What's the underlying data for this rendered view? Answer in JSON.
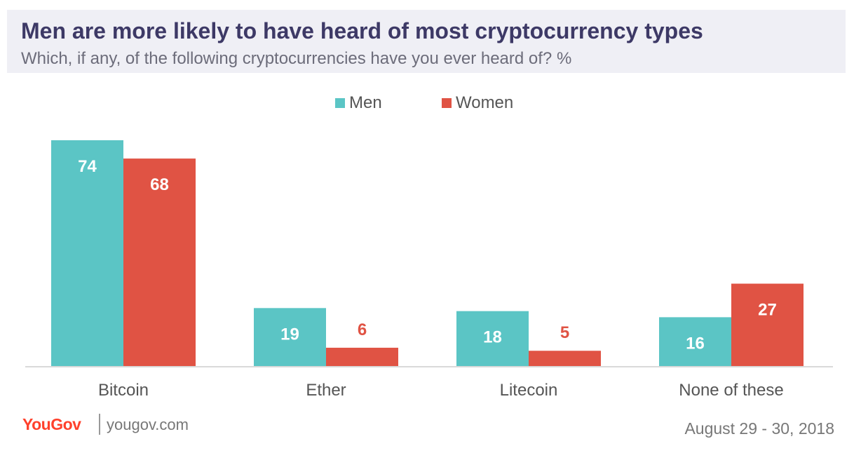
{
  "header": {
    "title": "Men are more likely to have heard of most cryptocurrency types",
    "subtitle": "Which, if any, of the following cryptocurrencies have you ever heard of? %"
  },
  "chart_data": {
    "type": "bar",
    "categories": [
      "Bitcoin",
      "Ether",
      "Litecoin",
      "None of these"
    ],
    "series": [
      {
        "name": "Men",
        "values": [
          74,
          19,
          18,
          16
        ],
        "color": "#5bc5c5"
      },
      {
        "name": "Women",
        "values": [
          68,
          6,
          5,
          27
        ],
        "color": "#e05344"
      }
    ],
    "ylim": [
      0,
      74
    ],
    "legend_position": "top-center",
    "title": "Men are more likely to have heard of most cryptocurrency types",
    "subtitle": "Which, if any, of the following cryptocurrencies have you ever heard of? %"
  },
  "footer": {
    "logo": "YouGov",
    "site": "yougov.com",
    "date": "August 29 - 30, 2018"
  },
  "colors": {
    "men": "#5bc5c5",
    "women": "#e05344",
    "title": "#3d3966",
    "axis": "#d9d9d9",
    "logo": "#ff412c"
  }
}
